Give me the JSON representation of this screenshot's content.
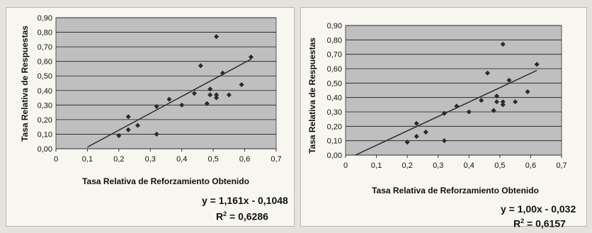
{
  "chart_data": [
    {
      "type": "scatter",
      "title": "",
      "xlabel": "Tasa Relativa de Reforzamiento Obtenido",
      "ylabel": "Tasa Relativa de Respuestas",
      "xlim": [
        0,
        0.7
      ],
      "ylim": [
        0,
        0.9
      ],
      "xticks": [
        "0",
        "0,1",
        "0,2",
        "0,3",
        "0,4",
        "0,5",
        "0,6",
        "0,7"
      ],
      "yticks": [
        "0,00",
        "0,10",
        "0,20",
        "0,30",
        "0,40",
        "0,50",
        "0,60",
        "0,70",
        "0,80",
        "0,90"
      ],
      "grid": true,
      "trendline": {
        "slope": 1.161,
        "intercept": -0.1048,
        "x_range": [
          0.1,
          0.62
        ]
      },
      "equation": "y = 1,161x - 0,1048",
      "r2_label": "R",
      "r2_value": " = 0,6286",
      "points": [
        {
          "x": 0.2,
          "y": 0.09
        },
        {
          "x": 0.23,
          "y": 0.13
        },
        {
          "x": 0.23,
          "y": 0.22
        },
        {
          "x": 0.26,
          "y": 0.16
        },
        {
          "x": 0.32,
          "y": 0.29
        },
        {
          "x": 0.32,
          "y": 0.1
        },
        {
          "x": 0.36,
          "y": 0.34
        },
        {
          "x": 0.4,
          "y": 0.3
        },
        {
          "x": 0.44,
          "y": 0.38
        },
        {
          "x": 0.46,
          "y": 0.57
        },
        {
          "x": 0.48,
          "y": 0.31
        },
        {
          "x": 0.49,
          "y": 0.37
        },
        {
          "x": 0.49,
          "y": 0.41
        },
        {
          "x": 0.51,
          "y": 0.35
        },
        {
          "x": 0.51,
          "y": 0.37
        },
        {
          "x": 0.51,
          "y": 0.77
        },
        {
          "x": 0.53,
          "y": 0.52
        },
        {
          "x": 0.55,
          "y": 0.37
        },
        {
          "x": 0.59,
          "y": 0.44
        },
        {
          "x": 0.62,
          "y": 0.63
        }
      ]
    },
    {
      "type": "scatter",
      "title": "",
      "xlabel": "Tasa Relativa de Reforzamiento Obtenido",
      "ylabel": "Tasa Relativa de Respuestas",
      "xlim": [
        0,
        0.7
      ],
      "ylim": [
        0,
        0.9
      ],
      "xticks": [
        "0",
        "0,1",
        "0,2",
        "0,3",
        "0,4",
        "0,5",
        "0,6",
        "0,7"
      ],
      "yticks": [
        "0,00",
        "0,10",
        "0,20",
        "0,30",
        "0,40",
        "0,50",
        "0,60",
        "0,70",
        "0,80",
        "0,90"
      ],
      "grid": true,
      "trendline": {
        "slope": 1.0,
        "intercept": -0.032,
        "x_range": [
          0.032,
          0.62
        ]
      },
      "equation": "y = 1,00x - 0,032",
      "r2_label": "R",
      "r2_value": " = 0,6157",
      "points": [
        {
          "x": 0.2,
          "y": 0.09
        },
        {
          "x": 0.23,
          "y": 0.13
        },
        {
          "x": 0.23,
          "y": 0.22
        },
        {
          "x": 0.26,
          "y": 0.16
        },
        {
          "x": 0.32,
          "y": 0.29
        },
        {
          "x": 0.32,
          "y": 0.1
        },
        {
          "x": 0.36,
          "y": 0.34
        },
        {
          "x": 0.4,
          "y": 0.3
        },
        {
          "x": 0.44,
          "y": 0.38
        },
        {
          "x": 0.46,
          "y": 0.57
        },
        {
          "x": 0.48,
          "y": 0.31
        },
        {
          "x": 0.49,
          "y": 0.37
        },
        {
          "x": 0.49,
          "y": 0.41
        },
        {
          "x": 0.51,
          "y": 0.35
        },
        {
          "x": 0.51,
          "y": 0.37
        },
        {
          "x": 0.51,
          "y": 0.77
        },
        {
          "x": 0.53,
          "y": 0.52
        },
        {
          "x": 0.55,
          "y": 0.37
        },
        {
          "x": 0.59,
          "y": 0.44
        },
        {
          "x": 0.62,
          "y": 0.63
        }
      ]
    }
  ],
  "style": {
    "plot_bg": "#bfbfbf",
    "grid_color": "#1a1a1a",
    "point_color": "#2a2a2a",
    "line_color": "#333333"
  }
}
